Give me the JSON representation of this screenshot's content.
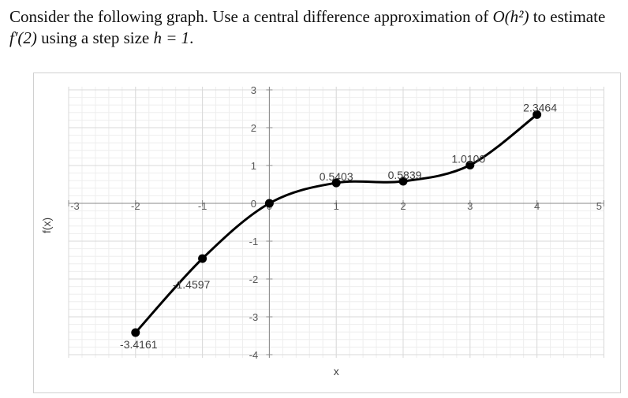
{
  "question": {
    "text_1": "Consider the following graph. Use a central difference approximation of ",
    "order": "O(h²)",
    "text_2": " to estimate ",
    "fprime": "f′(2)",
    "text_3": " using a step size ",
    "step": "h = 1",
    "text_4": "."
  },
  "chart_data": {
    "type": "line",
    "xlabel": "x",
    "ylabel": "f(x)",
    "xlim": [
      -3,
      5
    ],
    "ylim": [
      -4,
      3
    ],
    "x_ticks": [
      "-3",
      "-2",
      "-1",
      "0",
      "1",
      "2",
      "3",
      "4",
      "5"
    ],
    "y_ticks": [
      "3",
      "2",
      "1",
      "0",
      "-1",
      "-2",
      "-3",
      "-4"
    ],
    "grid": true,
    "series": [
      {
        "x": [
          -2,
          -1,
          0,
          1,
          2,
          3,
          4
        ],
        "y": [
          -3.4161,
          -1.4597,
          0,
          0.5403,
          0.5839,
          1.01,
          2.3464
        ]
      }
    ],
    "data_labels": [
      "-3.4161",
      "-1.4597",
      "",
      "0.5403",
      "0.5839",
      "1.0100",
      "2.3464"
    ],
    "colors": {
      "line": "#000000",
      "grid_major": "#d9d9d9",
      "grid_minor": "#eeeeee",
      "axis": "#888888",
      "tick_text": "#595959"
    }
  }
}
